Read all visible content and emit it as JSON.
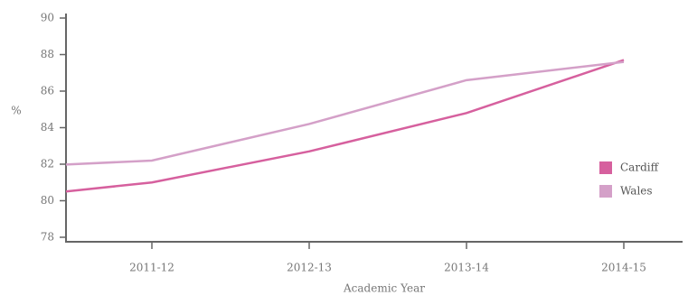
{
  "chart_data": {
    "type": "line",
    "categories": [
      null,
      "2011-12",
      "2012-13",
      "2013-14",
      "2014-15"
    ],
    "series": [
      {
        "name": "Cardiff",
        "color": "#d6609e",
        "values": [
          80.1,
          81.0,
          82.7,
          84.8,
          87.7
        ]
      },
      {
        "name": "Wales",
        "color": "#d4a0c8",
        "values": [
          81.8,
          82.2,
          84.2,
          86.6,
          87.6
        ]
      }
    ],
    "y_label": "%",
    "x_label": "Academic Year",
    "ylim": [
      78,
      90
    ],
    "yticks": [
      78,
      80,
      82,
      84,
      86,
      88,
      90
    ],
    "legend": "right"
  }
}
